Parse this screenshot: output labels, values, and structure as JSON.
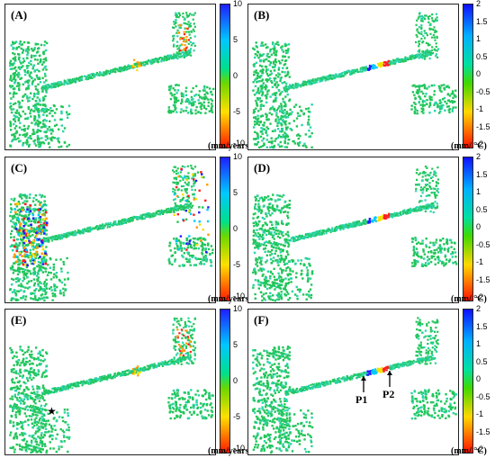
{
  "panels": [
    {
      "label": "(A)",
      "unit": "(mm/years)",
      "ticks": [
        "10",
        "5",
        "0",
        "-5",
        "-10"
      ],
      "type": "vel"
    },
    {
      "label": "(B)",
      "unit": "(mm/ °C)",
      "ticks": [
        "2",
        "1.5",
        "1",
        "0.5",
        "0",
        "-0.5",
        "-1",
        "-1.5",
        "-2"
      ],
      "type": "tmp"
    },
    {
      "label": "(C)",
      "unit": "(mm/years)",
      "ticks": [
        "10",
        "5",
        "0",
        "-5",
        "-10"
      ],
      "type": "vel"
    },
    {
      "label": "(D)",
      "unit": "(mm/ °C)",
      "ticks": [
        "2",
        "1.5",
        "1",
        "0.5",
        "0",
        "-0.5",
        "-1",
        "-1.5",
        "-2"
      ],
      "type": "tmp"
    },
    {
      "label": "(E)",
      "unit": "(mm/years)",
      "ticks": [
        "10",
        "5",
        "0",
        "-5",
        "-10"
      ],
      "type": "vel"
    },
    {
      "label": "(F)",
      "unit": "(mm/ °C)",
      "ticks": [
        "2",
        "1.5",
        "1",
        "0.5",
        "0",
        "-0.5",
        "-1",
        "-1.5",
        "-2"
      ],
      "type": "tmp"
    }
  ],
  "annotations": {
    "p1": "P1",
    "p2": "P2"
  },
  "colors": {
    "green": "#22c55a",
    "teal": "#2ad4a8",
    "cyan": "#00c8ff",
    "blue": "#1f1fff",
    "red": "#ff2020",
    "orange": "#ff9a00",
    "yellow": "#f0e000"
  }
}
